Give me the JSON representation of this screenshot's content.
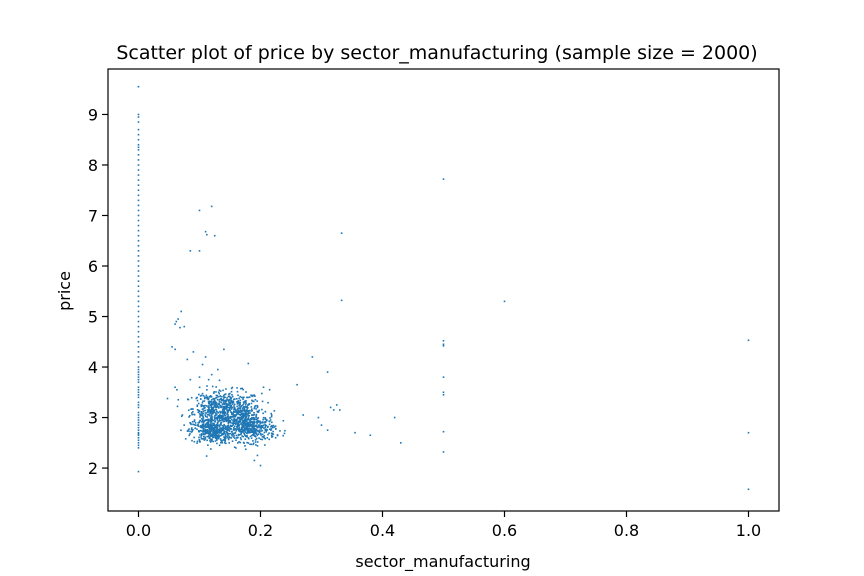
{
  "chart_data": {
    "type": "scatter",
    "title": "Scatter plot of price by sector_manufacturing (sample size = 2000)",
    "xlabel": "sector_manufacturing",
    "ylabel": "price",
    "xlim": [
      -0.05,
      1.05
    ],
    "ylim": [
      1.15,
      9.9
    ],
    "xticks": [
      0.0,
      0.2,
      0.4,
      0.6,
      0.8,
      1.0
    ],
    "xtick_labels": [
      "0.0",
      "0.2",
      "0.4",
      "0.6",
      "0.8",
      "1.0"
    ],
    "yticks": [
      2,
      3,
      4,
      5,
      6,
      7,
      8,
      9
    ],
    "ytick_labels": [
      "2",
      "3",
      "4",
      "5",
      "6",
      "7",
      "8",
      "9"
    ],
    "grid": false,
    "legend": "none",
    "point_color": "#1f77b4",
    "series": [
      {
        "x": [
          0,
          0,
          0,
          0,
          0,
          0,
          0,
          0,
          0,
          0,
          0,
          0,
          0,
          0,
          0,
          0,
          0,
          0,
          0,
          0,
          0,
          0,
          0,
          0,
          0,
          0,
          0,
          0,
          0,
          0,
          0,
          0,
          0,
          0,
          0,
          0,
          0,
          0,
          0,
          0,
          0,
          0,
          0,
          0,
          0,
          0,
          0,
          0,
          0,
          0,
          0,
          0,
          0,
          0,
          0,
          0,
          0,
          0,
          0,
          0,
          0,
          0,
          0,
          0,
          0,
          0,
          0,
          0,
          0,
          0,
          0,
          0,
          0,
          0,
          0,
          0,
          0,
          0,
          0,
          0,
          0,
          0,
          0,
          0,
          0.1,
          0.12,
          0.11,
          0.112,
          0.125,
          0.085,
          0.1,
          0.06,
          0.065,
          0.07,
          0.075,
          0.062,
          0.068,
          0.055,
          0.06,
          0.09,
          0.08,
          0.11,
          0.105,
          0.14,
          0.13,
          0.18,
          0.12,
          0.115,
          0.1,
          0.06,
          0.063,
          0.072,
          0.085,
          0.215,
          0.205,
          0.26,
          0.285,
          0.295,
          0.31,
          0.315,
          0.32,
          0.325,
          0.3,
          0.27,
          0.31,
          0.33,
          0.355,
          0.38,
          0.42,
          0.43,
          0.333,
          0.333,
          0.5,
          0.5,
          0.5,
          0.5,
          0.5,
          0.5,
          0.5,
          0.5,
          0.5,
          0.6,
          1.0,
          1.0,
          1.0,
          0.195,
          0.2,
          0.19,
          0.225
        ],
        "y": [
          9.55,
          9.0,
          8.95,
          8.85,
          8.7,
          8.6,
          8.5,
          8.4,
          8.35,
          8.3,
          8.2,
          8.1,
          8.0,
          7.9,
          7.8,
          7.7,
          7.6,
          7.5,
          7.4,
          7.3,
          7.2,
          7.1,
          7.0,
          6.9,
          6.8,
          6.7,
          6.6,
          6.5,
          6.4,
          6.3,
          6.2,
          6.1,
          6.0,
          5.9,
          5.8,
          5.7,
          5.6,
          5.5,
          5.4,
          5.3,
          5.2,
          5.1,
          5.0,
          4.9,
          4.8,
          4.7,
          4.6,
          4.5,
          4.4,
          4.3,
          4.2,
          4.1,
          4.0,
          3.95,
          3.9,
          3.85,
          3.8,
          3.75,
          3.7,
          3.6,
          3.5,
          3.4,
          3.3,
          3.2,
          3.1,
          3.05,
          3.0,
          2.95,
          2.9,
          2.85,
          2.8,
          2.75,
          2.7,
          2.65,
          2.6,
          2.55,
          2.5,
          2.45,
          2.4,
          3.55,
          3.45,
          3.25,
          1.93,
          2.68,
          7.1,
          7.18,
          6.68,
          6.62,
          6.6,
          6.3,
          6.3,
          4.85,
          4.95,
          5.1,
          4.8,
          4.9,
          4.78,
          4.4,
          4.35,
          4.3,
          4.15,
          4.2,
          4.05,
          4.35,
          3.95,
          4.07,
          3.85,
          3.75,
          3.8,
          3.6,
          3.55,
          3.05,
          3.75,
          3.55,
          3.6,
          3.65,
          4.2,
          3.0,
          3.9,
          3.2,
          3.15,
          3.25,
          2.85,
          3.05,
          2.75,
          3.15,
          2.7,
          2.65,
          3.0,
          2.5,
          6.65,
          5.32,
          7.72,
          4.52,
          4.45,
          3.8,
          3.5,
          3.45,
          2.72,
          2.32,
          4.42,
          5.3,
          4.53,
          2.7,
          1.58,
          2.25,
          2.05,
          2.15,
          2.78
        ]
      },
      {
        "name": "",
        "clusters": [
          {
            "cx": 0.145,
            "cy": 3.18,
            "rx": 0.028,
            "ry": 0.17,
            "n": 520
          },
          {
            "cx": 0.122,
            "cy": 2.72,
            "rx": 0.018,
            "ry": 0.12,
            "n": 380
          },
          {
            "cx": 0.185,
            "cy": 2.78,
            "rx": 0.02,
            "ry": 0.13,
            "n": 420
          },
          {
            "cx": 0.118,
            "cy": 3.1,
            "rx": 0.012,
            "ry": 0.2,
            "n": 160
          },
          {
            "cx": 0.165,
            "cy": 3.0,
            "rx": 0.015,
            "ry": 0.1,
            "n": 140
          }
        ]
      }
    ]
  }
}
